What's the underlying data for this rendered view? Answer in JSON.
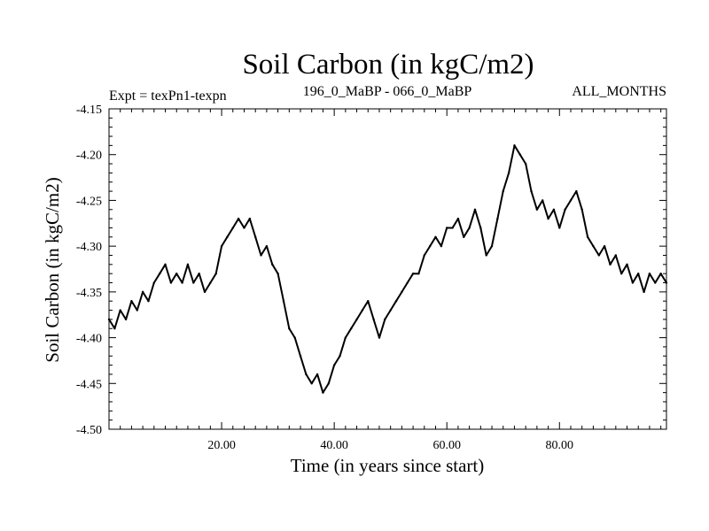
{
  "chart_data": {
    "type": "line",
    "title": "Soil Carbon (in kgC/m2)",
    "subtitle_left": "Expt = texPn1-texpn",
    "subtitle_center": "196_0_MaBP - 066_0_MaBP",
    "subtitle_right": "ALL_MONTHS",
    "xlabel": "Time (in years since start)",
    "ylabel": "Soil Carbon (in kgC/m2)",
    "xlim": [
      0,
      99
    ],
    "ylim": [
      -4.5,
      -4.15
    ],
    "x_ticks": [
      20,
      40,
      60,
      80
    ],
    "x_tick_labels": [
      "20.00",
      "40.00",
      "60.00",
      "80.00"
    ],
    "y_ticks": [
      -4.15,
      -4.2,
      -4.25,
      -4.3,
      -4.35,
      -4.4,
      -4.45,
      -4.5
    ],
    "y_tick_labels": [
      "-4.15",
      "-4.20",
      "-4.25",
      "-4.30",
      "-4.35",
      "-4.40",
      "-4.45",
      "-4.50"
    ],
    "grid": false,
    "series_color": "#000000",
    "x": [
      0,
      1,
      2,
      3,
      4,
      5,
      6,
      7,
      8,
      9,
      10,
      11,
      12,
      13,
      14,
      15,
      16,
      17,
      18,
      19,
      20,
      21,
      22,
      23,
      24,
      25,
      26,
      27,
      28,
      29,
      30,
      31,
      32,
      33,
      34,
      35,
      36,
      37,
      38,
      39,
      40,
      41,
      42,
      43,
      44,
      45,
      46,
      47,
      48,
      49,
      50,
      51,
      52,
      53,
      54,
      55,
      56,
      57,
      58,
      59,
      60,
      61,
      62,
      63,
      64,
      65,
      66,
      67,
      68,
      69,
      70,
      71,
      72,
      73,
      74,
      75,
      76,
      77,
      78,
      79,
      80,
      81,
      82,
      83,
      84,
      85,
      86,
      87,
      88,
      89,
      90,
      91,
      92,
      93,
      94,
      95,
      96,
      97,
      98,
      99
    ],
    "values": [
      -4.38,
      -4.39,
      -4.37,
      -4.38,
      -4.36,
      -4.37,
      -4.35,
      -4.36,
      -4.34,
      -4.33,
      -4.32,
      -4.34,
      -4.33,
      -4.34,
      -4.32,
      -4.34,
      -4.33,
      -4.35,
      -4.34,
      -4.33,
      -4.3,
      -4.29,
      -4.28,
      -4.27,
      -4.28,
      -4.27,
      -4.29,
      -4.31,
      -4.3,
      -4.32,
      -4.33,
      -4.36,
      -4.39,
      -4.4,
      -4.42,
      -4.44,
      -4.45,
      -4.44,
      -4.46,
      -4.45,
      -4.43,
      -4.42,
      -4.4,
      -4.39,
      -4.38,
      -4.37,
      -4.36,
      -4.38,
      -4.4,
      -4.38,
      -4.37,
      -4.36,
      -4.35,
      -4.34,
      -4.33,
      -4.33,
      -4.31,
      -4.3,
      -4.29,
      -4.3,
      -4.28,
      -4.28,
      -4.27,
      -4.29,
      -4.28,
      -4.26,
      -4.28,
      -4.31,
      -4.3,
      -4.27,
      -4.24,
      -4.22,
      -4.19,
      -4.2,
      -4.21,
      -4.24,
      -4.26,
      -4.25,
      -4.27,
      -4.26,
      -4.28,
      -4.26,
      -4.25,
      -4.24,
      -4.26,
      -4.29,
      -4.3,
      -4.31,
      -4.3,
      -4.32,
      -4.31,
      -4.33,
      -4.32,
      -4.34,
      -4.33,
      -4.35,
      -4.33,
      -4.34,
      -4.33,
      -4.34
    ]
  }
}
